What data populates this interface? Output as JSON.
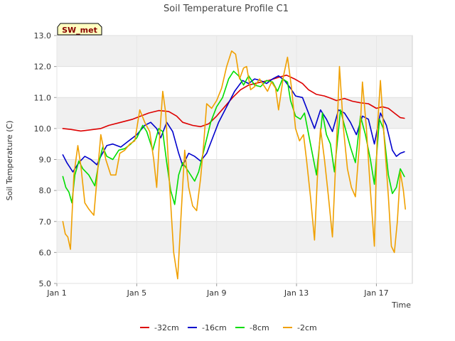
{
  "chart_data": {
    "type": "line",
    "title": "Soil Temperature Profile C1",
    "xlabel": "Time",
    "ylabel": "Soil Temperature (C)",
    "site_badge": "SW_met",
    "xlim": [
      1,
      18.8
    ],
    "ylim": [
      5.0,
      13.0
    ],
    "xticks": [
      {
        "x": 1,
        "label": "Jan 1"
      },
      {
        "x": 5,
        "label": "Jan 5"
      },
      {
        "x": 9,
        "label": "Jan 9"
      },
      {
        "x": 13,
        "label": "Jan 13"
      },
      {
        "x": 17,
        "label": "Jan 17"
      }
    ],
    "yticks": [
      5.0,
      6.0,
      7.0,
      8.0,
      9.0,
      10.0,
      11.0,
      12.0,
      13.0
    ],
    "ytick_labels": [
      "5.0",
      "6.0",
      "7.0",
      "8.0",
      "9.0",
      "10.0",
      "11.0",
      "12.0",
      "13.0"
    ],
    "banded_background": true,
    "legend_position": "bottom-center",
    "series": [
      {
        "name": "-32cm",
        "color": "#dd0000",
        "points": [
          [
            1.3,
            10.0
          ],
          [
            1.7,
            9.97
          ],
          [
            2.2,
            9.92
          ],
          [
            2.6,
            9.95
          ],
          [
            3.2,
            10.0
          ],
          [
            3.6,
            10.1
          ],
          [
            4.2,
            10.2
          ],
          [
            4.8,
            10.3
          ],
          [
            5.2,
            10.4
          ],
          [
            5.6,
            10.5
          ],
          [
            6.1,
            10.58
          ],
          [
            6.6,
            10.55
          ],
          [
            7.0,
            10.4
          ],
          [
            7.3,
            10.2
          ],
          [
            7.8,
            10.1
          ],
          [
            8.2,
            10.06
          ],
          [
            8.6,
            10.15
          ],
          [
            9.0,
            10.4
          ],
          [
            9.4,
            10.7
          ],
          [
            9.8,
            11.0
          ],
          [
            10.2,
            11.25
          ],
          [
            10.6,
            11.4
          ],
          [
            11.1,
            11.48
          ],
          [
            11.6,
            11.55
          ],
          [
            12.1,
            11.65
          ],
          [
            12.5,
            11.72
          ],
          [
            12.9,
            11.6
          ],
          [
            13.3,
            11.45
          ],
          [
            13.6,
            11.25
          ],
          [
            14.0,
            11.1
          ],
          [
            14.4,
            11.05
          ],
          [
            14.7,
            10.98
          ],
          [
            15.0,
            10.9
          ],
          [
            15.4,
            10.97
          ],
          [
            15.8,
            10.88
          ],
          [
            16.2,
            10.83
          ],
          [
            16.6,
            10.8
          ],
          [
            17.0,
            10.65
          ],
          [
            17.3,
            10.7
          ],
          [
            17.6,
            10.65
          ],
          [
            17.9,
            10.5
          ],
          [
            18.2,
            10.35
          ],
          [
            18.4,
            10.33
          ]
        ]
      },
      {
        "name": "-16cm",
        "color": "#0000cc",
        "points": [
          [
            1.3,
            9.15
          ],
          [
            1.5,
            8.9
          ],
          [
            1.8,
            8.6
          ],
          [
            2.1,
            8.9
          ],
          [
            2.4,
            9.1
          ],
          [
            2.7,
            9.0
          ],
          [
            3.0,
            8.83
          ],
          [
            3.2,
            9.1
          ],
          [
            3.5,
            9.45
          ],
          [
            3.8,
            9.5
          ],
          [
            4.2,
            9.4
          ],
          [
            4.6,
            9.6
          ],
          [
            5.0,
            9.8
          ],
          [
            5.4,
            10.1
          ],
          [
            5.7,
            10.2
          ],
          [
            6.0,
            10.0
          ],
          [
            6.2,
            9.7
          ],
          [
            6.5,
            10.2
          ],
          [
            6.8,
            9.9
          ],
          [
            7.1,
            9.2
          ],
          [
            7.3,
            8.8
          ],
          [
            7.6,
            9.2
          ],
          [
            7.9,
            9.1
          ],
          [
            8.2,
            8.95
          ],
          [
            8.5,
            9.2
          ],
          [
            8.8,
            9.7
          ],
          [
            9.1,
            10.2
          ],
          [
            9.5,
            10.7
          ],
          [
            9.9,
            11.2
          ],
          [
            10.3,
            11.55
          ],
          [
            10.6,
            11.45
          ],
          [
            10.9,
            11.6
          ],
          [
            11.2,
            11.55
          ],
          [
            11.5,
            11.45
          ],
          [
            11.8,
            11.6
          ],
          [
            12.1,
            11.7
          ],
          [
            12.4,
            11.55
          ],
          [
            12.7,
            11.3
          ],
          [
            12.95,
            11.05
          ],
          [
            13.3,
            11.0
          ],
          [
            13.6,
            10.5
          ],
          [
            13.9,
            10.0
          ],
          [
            14.2,
            10.6
          ],
          [
            14.5,
            10.3
          ],
          [
            14.8,
            9.9
          ],
          [
            15.1,
            10.6
          ],
          [
            15.4,
            10.5
          ],
          [
            15.7,
            10.2
          ],
          [
            16.0,
            9.8
          ],
          [
            16.3,
            10.4
          ],
          [
            16.6,
            10.3
          ],
          [
            16.9,
            9.5
          ],
          [
            17.2,
            10.5
          ],
          [
            17.5,
            10.1
          ],
          [
            17.8,
            9.3
          ],
          [
            18.0,
            9.1
          ],
          [
            18.2,
            9.2
          ],
          [
            18.4,
            9.25
          ]
        ]
      },
      {
        "name": "-8cm",
        "color": "#00dd00",
        "points": [
          [
            1.3,
            8.45
          ],
          [
            1.45,
            8.1
          ],
          [
            1.6,
            7.95
          ],
          [
            1.75,
            7.6
          ],
          [
            1.9,
            8.5
          ],
          [
            2.1,
            8.95
          ],
          [
            2.3,
            8.7
          ],
          [
            2.6,
            8.5
          ],
          [
            2.9,
            8.15
          ],
          [
            3.1,
            8.9
          ],
          [
            3.3,
            9.4
          ],
          [
            3.5,
            9.1
          ],
          [
            3.8,
            9.0
          ],
          [
            4.1,
            9.3
          ],
          [
            4.4,
            9.35
          ],
          [
            4.7,
            9.5
          ],
          [
            5.0,
            9.7
          ],
          [
            5.3,
            10.1
          ],
          [
            5.5,
            9.9
          ],
          [
            5.8,
            9.3
          ],
          [
            6.1,
            10.0
          ],
          [
            6.3,
            9.9
          ],
          [
            6.5,
            8.9
          ],
          [
            6.7,
            8.0
          ],
          [
            6.9,
            7.55
          ],
          [
            7.1,
            8.5
          ],
          [
            7.3,
            8.9
          ],
          [
            7.6,
            8.6
          ],
          [
            7.9,
            8.3
          ],
          [
            8.1,
            8.6
          ],
          [
            8.4,
            9.4
          ],
          [
            8.7,
            10.2
          ],
          [
            9.0,
            10.7
          ],
          [
            9.3,
            11.0
          ],
          [
            9.6,
            11.6
          ],
          [
            9.85,
            11.85
          ],
          [
            10.1,
            11.7
          ],
          [
            10.35,
            11.4
          ],
          [
            10.6,
            11.7
          ],
          [
            10.9,
            11.4
          ],
          [
            11.2,
            11.35
          ],
          [
            11.5,
            11.55
          ],
          [
            11.8,
            11.5
          ],
          [
            12.05,
            11.2
          ],
          [
            12.3,
            11.6
          ],
          [
            12.55,
            11.5
          ],
          [
            12.7,
            10.9
          ],
          [
            12.95,
            10.4
          ],
          [
            13.2,
            10.3
          ],
          [
            13.4,
            10.5
          ],
          [
            13.7,
            9.5
          ],
          [
            14.0,
            8.5
          ],
          [
            14.3,
            10.5
          ],
          [
            14.5,
            9.8
          ],
          [
            14.7,
            9.5
          ],
          [
            14.9,
            8.6
          ],
          [
            15.2,
            10.6
          ],
          [
            15.4,
            10.1
          ],
          [
            15.7,
            9.4
          ],
          [
            15.95,
            8.9
          ],
          [
            16.2,
            10.4
          ],
          [
            16.45,
            9.8
          ],
          [
            16.7,
            9.0
          ],
          [
            16.9,
            8.2
          ],
          [
            17.15,
            10.3
          ],
          [
            17.35,
            10.0
          ],
          [
            17.6,
            8.5
          ],
          [
            17.8,
            7.9
          ],
          [
            18.0,
            8.1
          ],
          [
            18.2,
            8.7
          ],
          [
            18.4,
            8.45
          ]
        ]
      },
      {
        "name": "-2cm",
        "color": "#f0a000",
        "points": [
          [
            1.3,
            7.0
          ],
          [
            1.42,
            6.6
          ],
          [
            1.55,
            6.5
          ],
          [
            1.68,
            6.1
          ],
          [
            1.85,
            8.5
          ],
          [
            2.05,
            9.45
          ],
          [
            2.2,
            8.8
          ],
          [
            2.4,
            7.6
          ],
          [
            2.6,
            7.4
          ],
          [
            2.85,
            7.2
          ],
          [
            3.05,
            8.7
          ],
          [
            3.2,
            9.8
          ],
          [
            3.45,
            9.0
          ],
          [
            3.7,
            8.5
          ],
          [
            3.95,
            8.5
          ],
          [
            4.15,
            9.2
          ],
          [
            4.4,
            9.3
          ],
          [
            4.65,
            9.5
          ],
          [
            4.9,
            9.6
          ],
          [
            5.15,
            10.6
          ],
          [
            5.4,
            10.2
          ],
          [
            5.65,
            9.9
          ],
          [
            5.85,
            9.0
          ],
          [
            6.0,
            8.1
          ],
          [
            6.15,
            9.8
          ],
          [
            6.3,
            11.2
          ],
          [
            6.45,
            10.5
          ],
          [
            6.65,
            8.1
          ],
          [
            6.85,
            6.0
          ],
          [
            7.05,
            5.15
          ],
          [
            7.2,
            7.0
          ],
          [
            7.4,
            9.3
          ],
          [
            7.6,
            8.1
          ],
          [
            7.8,
            7.5
          ],
          [
            8.0,
            7.35
          ],
          [
            8.2,
            8.4
          ],
          [
            8.35,
            9.5
          ],
          [
            8.5,
            10.8
          ],
          [
            8.75,
            10.65
          ],
          [
            9.0,
            10.9
          ],
          [
            9.25,
            11.3
          ],
          [
            9.5,
            12.0
          ],
          [
            9.75,
            12.5
          ],
          [
            9.95,
            12.4
          ],
          [
            10.15,
            11.6
          ],
          [
            10.35,
            11.95
          ],
          [
            10.5,
            12.0
          ],
          [
            10.7,
            11.25
          ],
          [
            10.9,
            11.35
          ],
          [
            11.15,
            11.6
          ],
          [
            11.35,
            11.4
          ],
          [
            11.55,
            11.2
          ],
          [
            11.75,
            11.5
          ],
          [
            11.95,
            11.3
          ],
          [
            12.1,
            10.6
          ],
          [
            12.35,
            11.7
          ],
          [
            12.55,
            12.3
          ],
          [
            12.75,
            11.3
          ],
          [
            12.95,
            10.0
          ],
          [
            13.15,
            9.6
          ],
          [
            13.35,
            9.8
          ],
          [
            13.5,
            9.0
          ],
          [
            13.7,
            7.8
          ],
          [
            13.9,
            6.4
          ],
          [
            14.05,
            8.5
          ],
          [
            14.2,
            10.0
          ],
          [
            14.4,
            9.0
          ],
          [
            14.6,
            7.8
          ],
          [
            14.8,
            6.5
          ],
          [
            15.0,
            9.5
          ],
          [
            15.15,
            12.0
          ],
          [
            15.35,
            10.0
          ],
          [
            15.55,
            8.7
          ],
          [
            15.75,
            8.1
          ],
          [
            15.95,
            7.8
          ],
          [
            16.15,
            9.5
          ],
          [
            16.3,
            11.5
          ],
          [
            16.5,
            10.0
          ],
          [
            16.7,
            8.0
          ],
          [
            16.9,
            6.2
          ],
          [
            17.05,
            10.0
          ],
          [
            17.2,
            11.55
          ],
          [
            17.4,
            9.6
          ],
          [
            17.6,
            7.8
          ],
          [
            17.75,
            6.2
          ],
          [
            17.9,
            6.0
          ],
          [
            18.05,
            7.0
          ],
          [
            18.2,
            8.6
          ],
          [
            18.35,
            8.0
          ],
          [
            18.45,
            7.4
          ]
        ]
      }
    ]
  }
}
